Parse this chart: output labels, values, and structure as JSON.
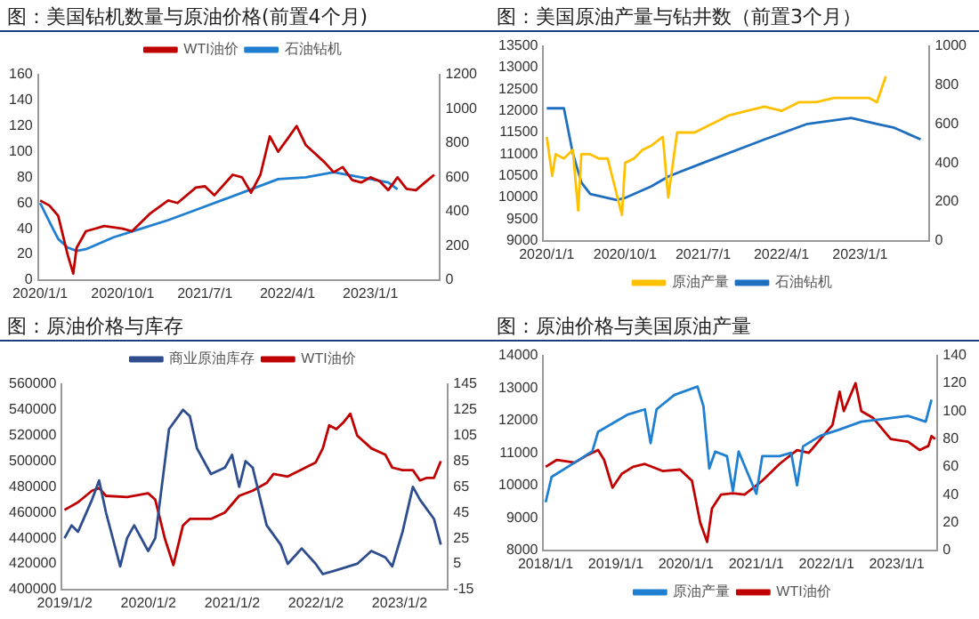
{
  "chart_data": [
    {
      "type": "line",
      "title": "图：美国钻机数量与原油价格(前置4个月)",
      "legend": "top",
      "grid": false,
      "marker": "none",
      "line_style": "solid",
      "xlim": [
        "2019-12-25",
        "2023-08-20"
      ],
      "xticks": [
        {
          "value": "2020-01-01",
          "label": "2020/1/1"
        },
        {
          "value": "2020-10-01",
          "label": "2020/10/1"
        },
        {
          "value": "2021-07-01",
          "label": "2021/7/1"
        },
        {
          "value": "2022-04-01",
          "label": "2022/4/1"
        },
        {
          "value": "2023-01-01",
          "label": "2023/1/1"
        }
      ],
      "ylim": [
        0,
        160
      ],
      "yticks": [
        0,
        20,
        40,
        60,
        80,
        100,
        120,
        140,
        160
      ],
      "y2lim": [
        0,
        1200
      ],
      "y2ticks": [
        0,
        200,
        400,
        600,
        800,
        1000,
        1200
      ],
      "series": [
        {
          "name": "WTI油价",
          "color": "#c00000",
          "axis": "y",
          "x": [
            "2020-01-01",
            "2020-02-01",
            "2020-03-01",
            "2020-04-01",
            "2020-04-20",
            "2020-05-01",
            "2020-06-01",
            "2020-08-01",
            "2020-10-01",
            "2020-11-01",
            "2021-01-01",
            "2021-03-01",
            "2021-04-01",
            "2021-06-01",
            "2021-07-01",
            "2021-08-01",
            "2021-10-01",
            "2021-11-01",
            "2021-12-01",
            "2022-01-01",
            "2022-02-01",
            "2022-03-01",
            "2022-04-01",
            "2022-05-01",
            "2022-06-01",
            "2022-08-01",
            "2022-09-01",
            "2022-10-01",
            "2022-11-01",
            "2022-12-01",
            "2023-01-01",
            "2023-02-01",
            "2023-03-01",
            "2023-04-01",
            "2023-05-01",
            "2023-06-01",
            "2023-07-01",
            "2023-08-01"
          ],
          "values": [
            62,
            58,
            50,
            20,
            5,
            25,
            38,
            42,
            40,
            38,
            52,
            62,
            60,
            72,
            73,
            66,
            82,
            80,
            68,
            82,
            112,
            100,
            110,
            120,
            105,
            92,
            84,
            88,
            78,
            76,
            80,
            77,
            70,
            80,
            71,
            70,
            76,
            82
          ]
        },
        {
          "name": "石油钻机",
          "color": "#1f7fd0",
          "axis": "y2",
          "x": [
            "2020-01-01",
            "2020-02-01",
            "2020-03-01",
            "2020-04-01",
            "2020-05-01",
            "2020-06-01",
            "2020-09-01",
            "2020-12-01",
            "2021-03-01",
            "2021-06-01",
            "2021-09-01",
            "2021-12-01",
            "2022-03-01",
            "2022-06-01",
            "2022-09-01",
            "2022-12-01",
            "2023-03-01",
            "2023-04-01"
          ],
          "values": [
            450,
            340,
            240,
            190,
            170,
            180,
            250,
            300,
            350,
            410,
            470,
            530,
            590,
            600,
            630,
            600,
            570,
            530
          ]
        }
      ]
    },
    {
      "type": "line",
      "title": "图：美国原油产量与钻井数（前置3个月）",
      "legend": "bottom",
      "grid": false,
      "marker": "none",
      "line_style": "solid",
      "xlim": [
        "2019-12-20",
        "2023-09-01"
      ],
      "xticks": [
        {
          "value": "2020-01-01",
          "label": "2020/1/1"
        },
        {
          "value": "2020-10-01",
          "label": "2020/10/1"
        },
        {
          "value": "2021-07-01",
          "label": "2021/7/1"
        },
        {
          "value": "2022-04-01",
          "label": "2022/4/1"
        },
        {
          "value": "2023-01-01",
          "label": "2023/1/1"
        }
      ],
      "ylim": [
        9000,
        13500
      ],
      "yticks": [
        9000,
        9500,
        10000,
        10500,
        11000,
        11500,
        12000,
        12500,
        13000,
        13500
      ],
      "y2lim": [
        0,
        1000
      ],
      "y2ticks": [
        0,
        200,
        400,
        600,
        800,
        1000
      ],
      "series": [
        {
          "name": "原油产量",
          "color": "#ffc000",
          "axis": "y",
          "x": [
            "2020-01-01",
            "2020-01-20",
            "2020-02-01",
            "2020-03-01",
            "2020-04-01",
            "2020-04-20",
            "2020-05-01",
            "2020-06-01",
            "2020-07-01",
            "2020-08-01",
            "2020-09-20",
            "2020-10-01",
            "2020-11-01",
            "2020-12-01",
            "2021-01-01",
            "2021-02-10",
            "2021-03-01",
            "2021-04-01",
            "2021-06-01",
            "2021-08-01",
            "2021-10-01",
            "2021-12-01",
            "2022-02-01",
            "2022-04-01",
            "2022-06-01",
            "2022-08-01",
            "2022-10-01",
            "2022-12-01",
            "2023-02-01",
            "2023-03-01",
            "2023-04-01"
          ],
          "values": [
            11400,
            10500,
            11000,
            10900,
            11100,
            9700,
            11000,
            11000,
            10900,
            10900,
            9600,
            10800,
            10900,
            11100,
            11200,
            11400,
            10000,
            11500,
            11500,
            11700,
            11900,
            12000,
            12100,
            12000,
            12200,
            12200,
            12300,
            12300,
            12300,
            12200,
            12800
          ]
        },
        {
          "name": "石油钻机",
          "color": "#1f6fc0",
          "axis": "y2",
          "x": [
            "2020-01-01",
            "2020-03-01",
            "2020-04-01",
            "2020-05-01",
            "2020-06-01",
            "2020-09-01",
            "2020-10-01",
            "2021-01-01",
            "2021-03-01",
            "2021-07-01",
            "2022-02-01",
            "2022-07-01",
            "2022-12-01",
            "2023-03-01",
            "2023-05-01",
            "2023-08-01"
          ],
          "values": [
            680,
            680,
            450,
            300,
            240,
            210,
            220,
            280,
            330,
            400,
            520,
            600,
            630,
            600,
            580,
            520
          ]
        }
      ]
    },
    {
      "type": "line",
      "title": "图：原油价格与库存",
      "legend": "top",
      "grid": false,
      "marker": "none",
      "line_style": "solid",
      "xlim": [
        "2018-12-20",
        "2023-08-01"
      ],
      "xticks": [
        {
          "value": "2019-01-02",
          "label": "2019/1/2"
        },
        {
          "value": "2020-01-02",
          "label": "2020/1/2"
        },
        {
          "value": "2021-01-02",
          "label": "2021/1/2"
        },
        {
          "value": "2022-01-02",
          "label": "2022/1/2"
        },
        {
          "value": "2023-01-02",
          "label": "2023/1/2"
        }
      ],
      "ylim": [
        400000,
        560000
      ],
      "yticks": [
        400000,
        420000,
        440000,
        460000,
        480000,
        500000,
        520000,
        540000,
        560000
      ],
      "y2lim": [
        -15,
        145
      ],
      "y2ticks": [
        -15,
        5,
        25,
        45,
        65,
        85,
        105,
        125,
        145
      ],
      "series": [
        {
          "name": "商业原油库存",
          "color": "#2e4d8e",
          "axis": "y",
          "x": [
            "2019-01-01",
            "2019-02-01",
            "2019-03-01",
            "2019-05-01",
            "2019-06-01",
            "2019-07-01",
            "2019-09-01",
            "2019-10-01",
            "2019-11-01",
            "2020-01-01",
            "2020-02-01",
            "2020-04-01",
            "2020-06-01",
            "2020-07-01",
            "2020-08-01",
            "2020-10-01",
            "2020-12-01",
            "2021-01-01",
            "2021-02-01",
            "2021-03-01",
            "2021-04-01",
            "2021-06-01",
            "2021-08-01",
            "2021-09-01",
            "2021-11-01",
            "2022-01-01",
            "2022-02-01",
            "2022-04-01",
            "2022-07-01",
            "2022-09-01",
            "2022-11-01",
            "2022-12-01",
            "2023-01-15",
            "2023-03-01",
            "2023-04-01",
            "2023-06-01",
            "2023-07-01"
          ],
          "values": [
            440000,
            450000,
            445000,
            470000,
            485000,
            460000,
            418000,
            440000,
            450000,
            430000,
            440000,
            525000,
            540000,
            535000,
            510000,
            490000,
            495000,
            505000,
            480000,
            500000,
            495000,
            450000,
            435000,
            420000,
            432000,
            420000,
            412000,
            415000,
            420000,
            430000,
            425000,
            418000,
            445000,
            480000,
            470000,
            455000,
            435000
          ]
        },
        {
          "name": "WTI油价",
          "color": "#c00000",
          "axis": "y2",
          "x": [
            "2019-01-01",
            "2019-03-01",
            "2019-05-01",
            "2019-06-01",
            "2019-07-01",
            "2019-10-01",
            "2020-01-01",
            "2020-02-01",
            "2020-03-15",
            "2020-04-20",
            "2020-06-01",
            "2020-07-01",
            "2020-10-01",
            "2020-12-01",
            "2021-02-01",
            "2021-04-01",
            "2021-06-01",
            "2021-07-01",
            "2021-09-01",
            "2022-01-01",
            "2022-02-01",
            "2022-03-01",
            "2022-04-01",
            "2022-05-01",
            "2022-06-01",
            "2022-07-01",
            "2022-09-01",
            "2022-11-01",
            "2022-12-01",
            "2023-01-15",
            "2023-03-01",
            "2023-04-01",
            "2023-05-01",
            "2023-06-01",
            "2023-07-01"
          ],
          "values": [
            47,
            53,
            62,
            64,
            58,
            57,
            60,
            55,
            24,
            4,
            35,
            40,
            40,
            45,
            58,
            62,
            68,
            75,
            73,
            84,
            95,
            113,
            110,
            115,
            122,
            105,
            95,
            90,
            80,
            78,
            78,
            70,
            72,
            72,
            85
          ]
        }
      ]
    },
    {
      "type": "line",
      "title": "图：原油价格与美国原油产量",
      "legend": "bottom",
      "grid": false,
      "marker": "none",
      "line_style": "solid",
      "xlim": [
        "2017-12-20",
        "2023-08-01"
      ],
      "xticks": [
        {
          "value": "2018-01-01",
          "label": "2018/1/1"
        },
        {
          "value": "2019-01-01",
          "label": "2019/1/1"
        },
        {
          "value": "2020-01-01",
          "label": "2020/1/1"
        },
        {
          "value": "2021-01-01",
          "label": "2021/1/1"
        },
        {
          "value": "2022-01-01",
          "label": "2022/1/1"
        },
        {
          "value": "2023-01-01",
          "label": "2023/1/1"
        }
      ],
      "ylim": [
        8000,
        14000
      ],
      "yticks": [
        8000,
        9000,
        10000,
        11000,
        12000,
        13000,
        14000
      ],
      "y2lim": [
        0,
        140
      ],
      "y2ticks": [
        0,
        20,
        40,
        60,
        80,
        100,
        120,
        140
      ],
      "series": [
        {
          "name": "原油产量",
          "color": "#1f7fd0",
          "axis": "y",
          "x": [
            "2018-01-01",
            "2018-02-01",
            "2018-06-01",
            "2018-09-01",
            "2018-10-01",
            "2019-03-01",
            "2019-06-01",
            "2019-07-01",
            "2019-08-01",
            "2019-11-01",
            "2020-03-01",
            "2020-04-01",
            "2020-05-01",
            "2020-06-01",
            "2020-08-01",
            "2020-09-01",
            "2020-10-01",
            "2021-01-01",
            "2021-02-01",
            "2021-05-01",
            "2021-07-01",
            "2021-08-01",
            "2021-09-01",
            "2021-12-01",
            "2022-03-01",
            "2022-07-01",
            "2022-11-01",
            "2023-03-01",
            "2023-06-01",
            "2023-07-01"
          ],
          "values": [
            9480,
            10260,
            10700,
            11050,
            11650,
            12170,
            12340,
            11300,
            12340,
            12780,
            13040,
            12430,
            10520,
            11040,
            10900,
            9830,
            11040,
            9740,
            10900,
            10900,
            11000,
            10000,
            11200,
            11530,
            11700,
            11960,
            12050,
            12140,
            11960,
            12640
          ]
        },
        {
          "name": "WTI油价",
          "color": "#c00000",
          "axis": "y2",
          "x": [
            "2018-01-01",
            "2018-03-01",
            "2018-06-01",
            "2018-08-01",
            "2018-10-01",
            "2018-11-01",
            "2018-12-15",
            "2019-02-01",
            "2019-04-01",
            "2019-06-01",
            "2019-09-01",
            "2019-12-01",
            "2020-02-01",
            "2020-03-15",
            "2020-04-20",
            "2020-05-15",
            "2020-07-01",
            "2020-09-01",
            "2020-11-01",
            "2021-02-01",
            "2021-05-01",
            "2021-08-01",
            "2021-10-01",
            "2021-12-01",
            "2022-02-01",
            "2022-03-10",
            "2022-04-01",
            "2022-06-01",
            "2022-07-01",
            "2022-09-01",
            "2022-12-01",
            "2023-03-01",
            "2023-05-01",
            "2023-06-15",
            "2023-07-01",
            "2023-07-20"
          ],
          "values": [
            60,
            65,
            63,
            68,
            72,
            65,
            45,
            55,
            60,
            62,
            57,
            58,
            50,
            20,
            6,
            30,
            40,
            41,
            40,
            50,
            62,
            72,
            70,
            80,
            90,
            114,
            100,
            120,
            100,
            95,
            80,
            78,
            72,
            75,
            82,
            80
          ]
        }
      ]
    }
  ]
}
